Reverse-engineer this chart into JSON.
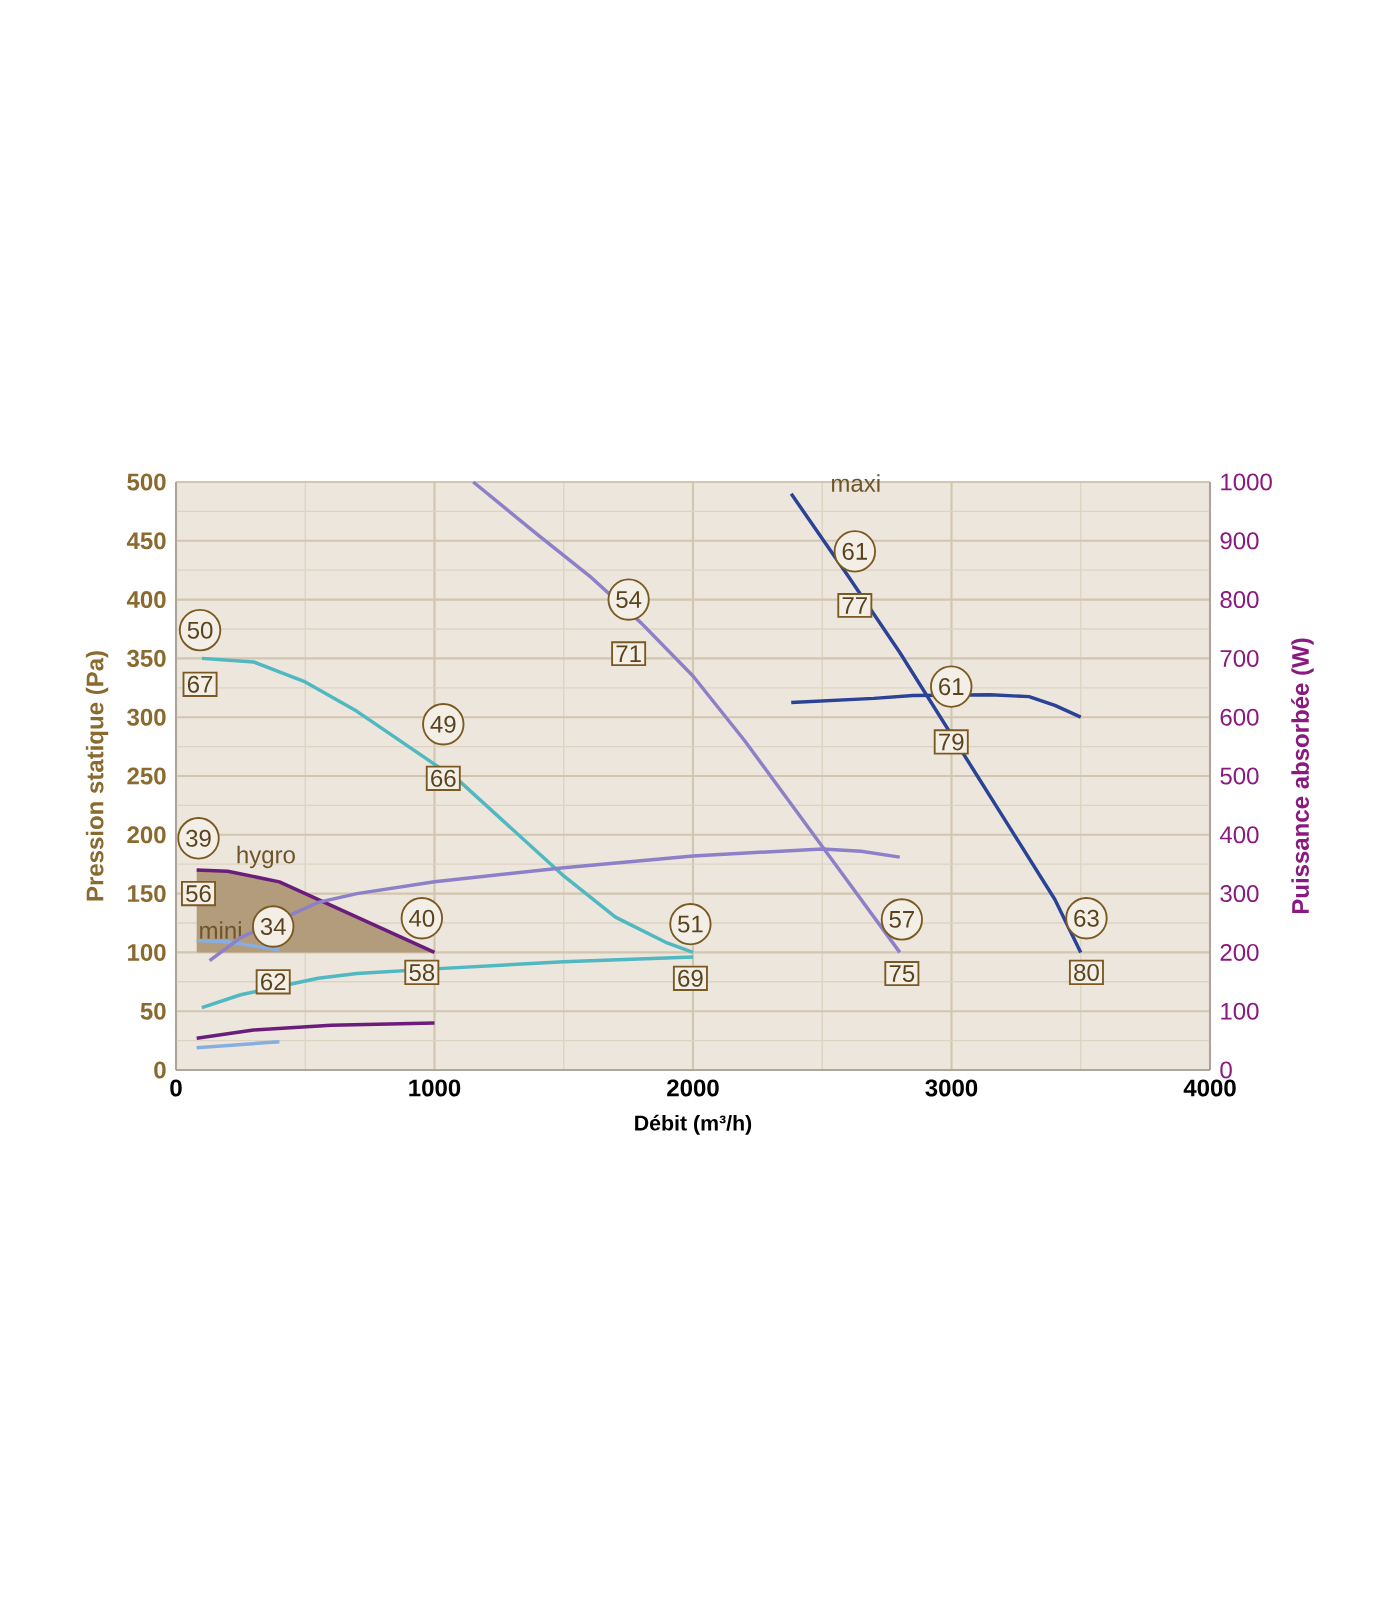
{
  "chart_data": {
    "type": "line",
    "xlabel": "Débit (m³/h)",
    "ylabel": "Pression statique (Pa)",
    "y2label": "Puissance absorbée (W)",
    "xlim": [
      0,
      4000
    ],
    "xticks": [
      0,
      1000,
      2000,
      3000,
      4000
    ],
    "ylim": [
      0,
      500
    ],
    "yticks": [
      0,
      50,
      100,
      150,
      200,
      250,
      300,
      350,
      400,
      450,
      500
    ],
    "y2lim": [
      0,
      1000
    ],
    "y2ticks": [
      0,
      100,
      200,
      300,
      400,
      500,
      600,
      700,
      800,
      900,
      1000
    ],
    "grid": true,
    "series": [
      {
        "name": "hygro",
        "color": "#6b1d7c",
        "x": [
          80,
          200,
          400,
          600,
          800,
          1000
        ],
        "values": [
          170,
          169,
          160,
          140,
          120,
          100
        ],
        "lower": [
          100,
          100,
          100,
          100,
          100,
          100
        ],
        "upper": [
          170,
          169,
          160,
          140,
          120,
          100
        ]
      },
      {
        "name": "mini",
        "color": "#86aee0",
        "x": [
          80,
          200,
          400
        ],
        "values": [
          110,
          109,
          102
        ]
      },
      {
        "color": "#4fb8c0",
        "x": [
          100,
          300,
          500,
          700,
          900,
          1100,
          1300,
          1500,
          1700,
          1900,
          2000
        ],
        "values": [
          350,
          347,
          330,
          305,
          275,
          245,
          205,
          165,
          130,
          108,
          100
        ]
      },
      {
        "color": "#8c80c8",
        "x": [
          1150,
          1400,
          1600,
          1800,
          2000,
          2200,
          2400,
          2600,
          2800
        ],
        "values": [
          500,
          455,
          420,
          380,
          335,
          280,
          220,
          160,
          100
        ]
      },
      {
        "name": "maxi",
        "color": "#2b4396",
        "x": [
          2380,
          2600,
          2800,
          3100,
          3200,
          3400,
          3500
        ],
        "values": [
          490,
          420,
          355,
          250,
          215,
          145,
          100
        ]
      },
      {
        "color": "#8c80c8",
        "axis": "y2",
        "x": [
          130,
          250,
          550,
          700,
          1000,
          1500,
          2000,
          2500,
          2650,
          2800
        ],
        "values": [
          186,
          225,
          285,
          300,
          320,
          344,
          364,
          376,
          372,
          362
        ]
      },
      {
        "color": "#2b4396",
        "axis": "y2",
        "x": [
          2380,
          2700,
          2850,
          3150,
          3300,
          3400,
          3500
        ],
        "values": [
          625,
          632,
          637,
          638,
          635,
          620,
          600
        ]
      },
      {
        "color": "#4fb8c0",
        "axis": "y2",
        "x": [
          100,
          250,
          550,
          700,
          1000,
          1500,
          2000
        ],
        "values": [
          106,
          128,
          156,
          164,
          172,
          184,
          192
        ]
      },
      {
        "color": "#6b1d7c",
        "axis": "y2",
        "x": [
          80,
          300,
          600,
          1000
        ],
        "values": [
          54,
          68,
          76,
          80
        ]
      },
      {
        "color": "#86aee0",
        "axis": "y2",
        "x": [
          80,
          400
        ],
        "values": [
          38,
          48
        ]
      }
    ],
    "annotations": [
      {
        "text": "50",
        "x": 93,
        "y": 374
      },
      {
        "text": "67",
        "x": 93,
        "y": 328
      },
      {
        "text": "49",
        "x": 1034,
        "y": 294
      },
      {
        "text": "66",
        "x": 1034,
        "y": 248
      },
      {
        "text": "39",
        "x": 87,
        "y": 197
      },
      {
        "text": "56",
        "x": 87,
        "y": 150
      },
      {
        "text": "34",
        "x": 376,
        "y": 122
      },
      {
        "text": "62",
        "x": 376,
        "y": 75
      },
      {
        "text": "40",
        "x": 951,
        "y": 129
      },
      {
        "text": "58",
        "x": 951,
        "y": 83
      },
      {
        "text": "54",
        "x": 1751,
        "y": 400
      },
      {
        "text": "71",
        "x": 1751,
        "y": 354
      },
      {
        "text": "51",
        "x": 1990,
        "y": 124
      },
      {
        "text": "69",
        "x": 1990,
        "y": 78
      },
      {
        "text": "61",
        "x": 2626,
        "y": 441
      },
      {
        "text": "77",
        "x": 2626,
        "y": 395
      },
      {
        "text": "61",
        "x": 2999,
        "y": 326
      },
      {
        "text": "79",
        "x": 2999,
        "y": 279
      },
      {
        "text": "57",
        "x": 2808,
        "y": 128
      },
      {
        "text": "75",
        "x": 2808,
        "y": 82
      },
      {
        "text": "63",
        "x": 3522,
        "y": 129
      },
      {
        "text": "80",
        "x": 3522,
        "y": 83
      }
    ]
  }
}
